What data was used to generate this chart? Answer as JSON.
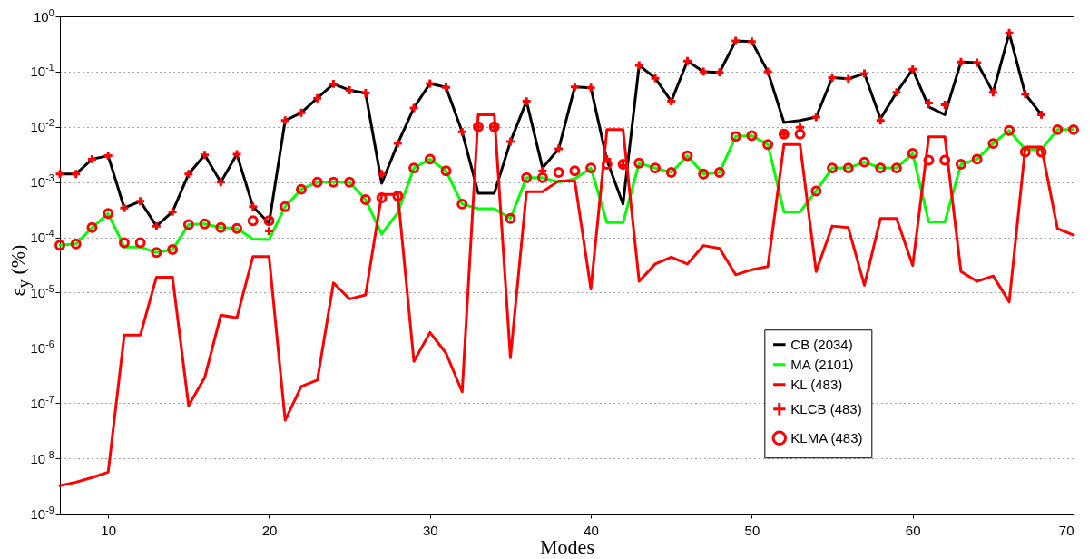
{
  "chart_data": {
    "type": "line",
    "xlabel": "Modes",
    "ylabel": "ε$_{y}$ (%)",
    "log": "y",
    "grid": "y",
    "legend": "bottom right",
    "xlim": [
      7,
      70
    ],
    "xticks": [
      10,
      20,
      30,
      40,
      50,
      60,
      70
    ],
    "ylim": [
      1e-09,
      1
    ],
    "yticks": [
      {
        "value": 1e-09,
        "label": "10$^{-9}$"
      },
      {
        "value": 1e-08,
        "label": "10$^{-8}$"
      },
      {
        "value": 1e-07,
        "label": "10$^{-7}$"
      },
      {
        "value": 1e-06,
        "label": "10$^{-6}$"
      },
      {
        "value": 1e-05,
        "label": "10$^{-5}$"
      },
      {
        "value": 0.0001,
        "label": "10$^{-4}$"
      },
      {
        "value": 0.001,
        "label": "10$^{-3}$"
      },
      {
        "value": 0.01,
        "label": "10$^{-2}$"
      },
      {
        "value": 0.1,
        "label": "10$^{-1}$"
      },
      {
        "value": 1,
        "label": "10$^{0}$"
      }
    ],
    "x": [
      7,
      8,
      9,
      10,
      11,
      12,
      13,
      14,
      15,
      16,
      17,
      18,
      19,
      20,
      21,
      22,
      23,
      24,
      25,
      26,
      27,
      28,
      29,
      30,
      31,
      32,
      33,
      34,
      35,
      36,
      37,
      38,
      39,
      40,
      41,
      42,
      43,
      44,
      45,
      46,
      47,
      48,
      49,
      50,
      51,
      52,
      53,
      54,
      55,
      56,
      57,
      58,
      59,
      60,
      61,
      62,
      63,
      64,
      65,
      66,
      67,
      68,
      69,
      70
    ],
    "series": [
      {
        "name": "CB (2034)",
        "color": "#000000",
        "values": [
          0.0014,
          0.0014,
          0.0026,
          0.003,
          0.00034,
          0.00045,
          0.00016,
          0.00029,
          0.0014,
          0.0031,
          0.001,
          0.0032,
          0.00036,
          0.00018,
          0.013,
          0.018,
          0.033,
          0.06,
          0.046,
          0.041,
          0.00095,
          0.005,
          0.022,
          0.061,
          0.052,
          0.0081,
          0.00063,
          0.00063,
          0.0054,
          0.029,
          0.0018,
          0.004,
          0.053,
          0.051,
          0.0025,
          0.0004,
          0.13,
          0.076,
          0.029,
          0.155,
          0.1,
          0.097,
          0.36,
          0.35,
          0.1,
          0.012,
          0.013,
          0.015,
          0.078,
          0.074,
          0.092,
          0.014,
          0.042,
          0.11,
          0.023,
          0.0166,
          0.15,
          0.145,
          0.042,
          0.5,
          0.039,
          0.0166,
          null,
          null
        ]
      },
      {
        "name": "MA (2101)",
        "color": "#00ff00",
        "values": [
          7.2e-05,
          7.6e-05,
          0.00015,
          0.00027,
          6.7e-05,
          6.7e-05,
          5.3e-05,
          6e-05,
          0.00017,
          0.000175,
          0.00015,
          0.000145,
          9.3e-05,
          9.1e-05,
          0.00036,
          0.00074,
          0.001,
          0.001,
          0.001,
          0.00048,
          0.000115,
          0.00028,
          0.0018,
          0.0026,
          0.0016,
          0.0004,
          0.00033,
          0.00033,
          0.00022,
          0.0012,
          0.0012,
          0.001,
          0.00115,
          0.0018,
          0.000185,
          0.000185,
          0.0022,
          0.0018,
          0.0015,
          0.003,
          0.0014,
          0.0015,
          0.0067,
          0.0069,
          0.0048,
          0.00029,
          0.00029,
          0.00069,
          0.0018,
          0.0018,
          0.0023,
          0.0018,
          0.0018,
          0.0033,
          0.00019,
          0.00019,
          0.0021,
          0.0026,
          0.005,
          0.0086,
          0.0039,
          0.0039,
          0.0089,
          0.0089
        ]
      },
      {
        "name": "KL (483)",
        "color": "#ff0000",
        "values": [
          3.2e-09,
          3.7e-09,
          4.5e-09,
          5.6e-09,
          1.7e-06,
          1.7e-06,
          1.9e-05,
          1.9e-05,
          9e-08,
          2.9e-07,
          3.9e-06,
          3.5e-06,
          4.5e-05,
          4.5e-05,
          4.9e-08,
          2e-07,
          2.6e-07,
          1.5e-05,
          7.7e-06,
          9.1e-06,
          0.0006,
          0.0006,
          5.7e-07,
          1.9e-06,
          8e-07,
          1.6e-07,
          0.0166,
          0.0166,
          6.6e-07,
          0.00067,
          0.00067,
          0.00105,
          0.00105,
          1.16e-05,
          0.0089,
          0.0089,
          1.6e-05,
          3.3e-05,
          4.4e-05,
          3.3e-05,
          7.1e-05,
          6.3e-05,
          2.1e-05,
          2.6e-05,
          2.95e-05,
          0.0048,
          0.0048,
          2.4e-05,
          0.00016,
          0.00015,
          1.36e-05,
          0.00022,
          0.00022,
          3.1e-05,
          0.0066,
          0.0066,
          2.4e-05,
          1.6e-05,
          2e-05,
          6.8e-06,
          0.0043,
          0.0043,
          0.000144,
          0.00011
        ]
      },
      {
        "name": "KLCB (483)",
        "type": "scatter",
        "marker": "cross",
        "color": "#ff0000",
        "values": [
          0.0014,
          0.0014,
          0.0026,
          0.003,
          0.00034,
          0.00045,
          0.00016,
          0.00029,
          0.0014,
          0.0031,
          0.001,
          0.0032,
          0.00036,
          0.00013,
          0.013,
          0.018,
          0.033,
          0.06,
          0.046,
          0.041,
          0.0014,
          0.005,
          0.022,
          0.061,
          0.052,
          0.0081,
          0.01,
          0.01,
          0.0054,
          0.029,
          0.0016,
          0.004,
          0.053,
          0.051,
          0.0026,
          0.002,
          0.13,
          0.076,
          0.029,
          0.155,
          0.1,
          0.097,
          0.36,
          0.35,
          0.1,
          0.0074,
          0.0098,
          0.015,
          0.078,
          0.074,
          0.092,
          0.013,
          0.042,
          0.11,
          0.027,
          0.025,
          0.15,
          0.145,
          0.042,
          0.5,
          0.039,
          0.0166,
          null,
          null
        ]
      },
      {
        "name": "KLMA (483)",
        "type": "scatter",
        "marker": "circle",
        "color": "#ff0000",
        "values": [
          7.2e-05,
          7.6e-05,
          0.00015,
          0.00027,
          8e-05,
          8e-05,
          5.3e-05,
          6e-05,
          0.00017,
          0.000175,
          0.00015,
          0.000145,
          0.0002,
          0.0002,
          0.00036,
          0.00074,
          0.001,
          0.001,
          0.001,
          0.00048,
          0.00052,
          0.00056,
          0.0018,
          0.0026,
          0.0016,
          0.0004,
          0.01,
          0.01,
          0.00022,
          0.0012,
          0.0012,
          0.0015,
          0.0016,
          0.0018,
          0.0021,
          0.0021,
          0.0022,
          0.0018,
          0.0015,
          0.003,
          0.0014,
          0.0015,
          0.0067,
          0.0069,
          0.0048,
          0.0074,
          0.0074,
          0.00069,
          0.0018,
          0.0018,
          0.0023,
          0.0018,
          0.0018,
          0.0033,
          0.0025,
          0.0025,
          0.0021,
          0.0026,
          0.005,
          0.0086,
          0.0035,
          0.0035,
          0.0089,
          0.0089
        ]
      }
    ]
  }
}
